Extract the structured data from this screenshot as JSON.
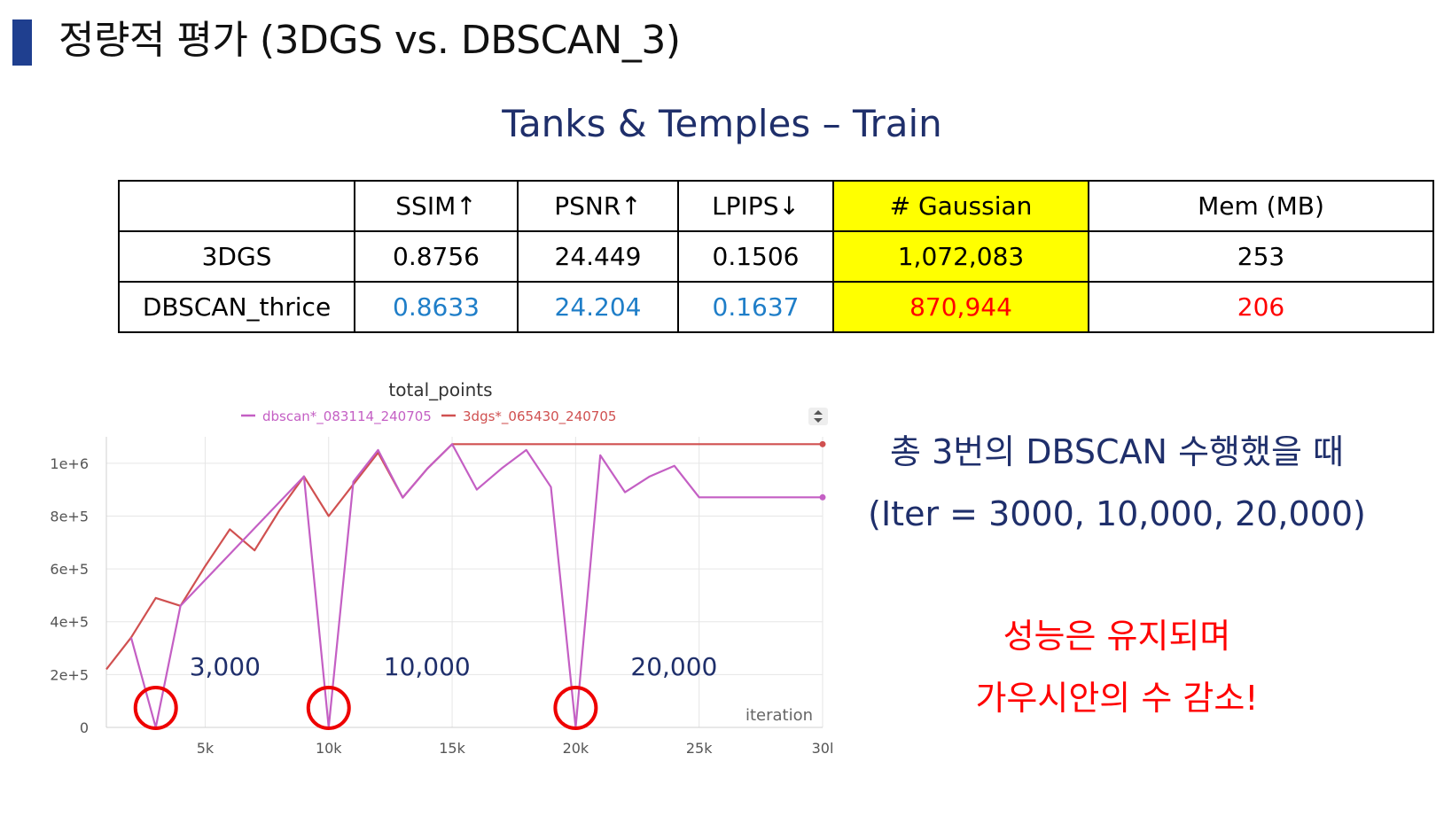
{
  "slide": {
    "title": "정량적 평가 (3DGS vs. DBSCAN_3)",
    "subtitle": "Tanks & Temples – Train"
  },
  "table": {
    "columns": [
      "",
      "SSIM↑",
      "PSNR↑",
      "LPIPS↓",
      "# Gaussian",
      "Mem (MB)"
    ],
    "rows": [
      {
        "label": "3DGS",
        "cells": [
          "0.8756",
          "24.449",
          "0.1506",
          "1,072,083",
          "253"
        ]
      },
      {
        "label": "DBSCAN_thrice",
        "cells": [
          "0.8633",
          "24.204",
          "0.1637",
          "870,944",
          "206"
        ]
      }
    ],
    "highlight_color": "#ffff00",
    "blue_color": "#1f7ec8",
    "red_color": "#ff0000"
  },
  "chart_data": {
    "type": "line",
    "title": "total_points",
    "xlabel": "iteration",
    "ylabel": "",
    "xlim": [
      1000,
      30000
    ],
    "ylim": [
      0,
      1100000
    ],
    "x_ticks": [
      5000,
      10000,
      15000,
      20000,
      25000,
      30000
    ],
    "x_tick_labels": [
      "5k",
      "10k",
      "15k",
      "20k",
      "25k",
      "30l"
    ],
    "y_ticks": [
      0,
      200000,
      400000,
      600000,
      800000,
      1000000
    ],
    "y_tick_labels": [
      "0",
      "2e+5",
      "4e+5",
      "6e+5",
      "8e+5",
      "1e+6"
    ],
    "grid": true,
    "legend_position": "top",
    "series": [
      {
        "name": "dbscan*_083114_240705",
        "color": "#c45fc4",
        "x": [
          2000,
          3000,
          4000,
          9000,
          10000,
          11000,
          12000,
          13000,
          14000,
          15000,
          16000,
          17000,
          18000,
          19000,
          20000,
          21000,
          22000,
          23000,
          24000,
          25000,
          30000
        ],
        "y": [
          340000,
          0,
          460000,
          950000,
          0,
          930000,
          1050000,
          870000,
          980000,
          1072083,
          900000,
          980000,
          1050000,
          910000,
          0,
          1030000,
          890000,
          950000,
          990000,
          870944,
          870944
        ]
      },
      {
        "name": "3dgs*_065430_240705",
        "color": "#d05050",
        "x": [
          1000,
          2000,
          3000,
          4000,
          5000,
          6000,
          7000,
          8000,
          9000,
          10000,
          11000,
          12000,
          13000,
          14000,
          15000,
          30000
        ],
        "y": [
          220000,
          340000,
          490000,
          460000,
          610000,
          750000,
          670000,
          820000,
          950000,
          800000,
          920000,
          1040000,
          870000,
          980000,
          1072083,
          1072083
        ]
      }
    ],
    "annotations": [
      {
        "text": "3,000",
        "x": 3000
      },
      {
        "text": "10,000",
        "x": 10000
      },
      {
        "text": "20,000",
        "x": 20000
      }
    ]
  },
  "notes": {
    "line1": "총 3번의 DBSCAN 수행했을 때",
    "line2": "(Iter = 3000, 10,000, 20,000)",
    "line3": "성능은 유지되며",
    "line4": "가우시안의 수 감소!",
    "blue_color": "#1f2f6b",
    "red_color": "#ff0000"
  }
}
